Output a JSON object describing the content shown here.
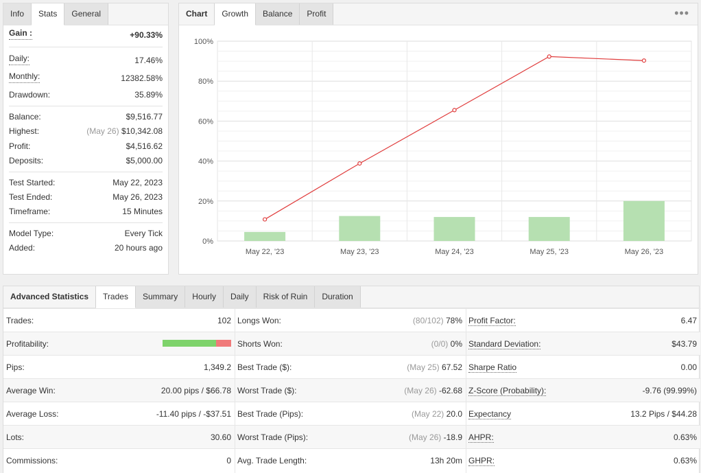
{
  "info_panel": {
    "tabs": [
      "Info",
      "Stats",
      "General"
    ],
    "active_tab": "Stats",
    "rows": {
      "gain": {
        "label": "Gain :",
        "value": "+90.33%"
      },
      "daily": {
        "label": "Daily:",
        "value": "17.46%"
      },
      "monthly": {
        "label": "Monthly:",
        "value": "12382.58%"
      },
      "drawdown": {
        "label": "Drawdown:",
        "value": "35.89%"
      },
      "balance": {
        "label": "Balance:",
        "value": "$9,516.77"
      },
      "highest": {
        "label": "Highest:",
        "note": "(May 26)",
        "value": "$10,342.08"
      },
      "profit": {
        "label": "Profit:",
        "value": "$4,516.62"
      },
      "deposits": {
        "label": "Deposits:",
        "value": "$5,000.00"
      },
      "test_started": {
        "label": "Test Started:",
        "value": "May 22, 2023"
      },
      "test_ended": {
        "label": "Test Ended:",
        "value": "May 26, 2023"
      },
      "timeframe": {
        "label": "Timeframe:",
        "value": "15 Minutes"
      },
      "model_type": {
        "label": "Model Type:",
        "value": "Every Tick"
      },
      "added": {
        "label": "Added:",
        "value": "20 hours ago"
      }
    },
    "colors": {
      "positive": "#1e9c3a"
    }
  },
  "chart_panel": {
    "tabs": [
      "Chart",
      "Growth",
      "Balance",
      "Profit"
    ],
    "active_tab": "Growth",
    "menu_icon": "ellipsis-icon"
  },
  "chart_data": {
    "type": "bar+line",
    "categories": [
      "May 22, '23",
      "May 23, '23",
      "May 24, '23",
      "May 25, '23",
      "May 26, '23"
    ],
    "series": [
      {
        "kind": "bar",
        "color": "#b6e0b1",
        "values": [
          4.5,
          12.5,
          12,
          12,
          20
        ]
      },
      {
        "kind": "line",
        "color": "#e03c3c",
        "values": [
          10.8,
          38.8,
          65.5,
          92.3,
          90.3
        ]
      }
    ],
    "ylim": [
      0,
      100
    ],
    "yticks": [
      "0%",
      "20%",
      "40%",
      "60%",
      "80%",
      "100%"
    ],
    "grid": true
  },
  "advanced": {
    "tabs": [
      "Advanced Statistics",
      "Trades",
      "Summary",
      "Hourly",
      "Daily",
      "Risk of Ruin",
      "Duration"
    ],
    "active_tab": "Trades",
    "col1": [
      {
        "label": "Trades:",
        "value": "102"
      },
      {
        "label": "Profitability:",
        "value": "",
        "bar": {
          "green": 78,
          "red": 22
        }
      },
      {
        "label": "Pips:",
        "value": "1,349.2"
      },
      {
        "label": "Average Win:",
        "value": "20.00 pips / $66.78"
      },
      {
        "label": "Average Loss:",
        "value": "-11.40 pips / -$37.51"
      },
      {
        "label": "Lots:",
        "value": "30.60"
      },
      {
        "label": "Commissions:",
        "value": "0"
      }
    ],
    "col2": [
      {
        "label": "Longs Won:",
        "note": "(80/102)",
        "value": "78%"
      },
      {
        "label": "Shorts Won:",
        "note": "(0/0)",
        "value": "0%"
      },
      {
        "label": "Best Trade ($):",
        "note": "(May 25)",
        "value": "67.52"
      },
      {
        "label": "Worst Trade ($):",
        "note": "(May 26)",
        "value": "-62.68"
      },
      {
        "label": "Best Trade (Pips):",
        "note": "(May 22)",
        "value": "20.0"
      },
      {
        "label": "Worst Trade (Pips):",
        "note": "(May 26)",
        "value": "-18.9"
      },
      {
        "label": "Avg. Trade Length:",
        "note": "",
        "value": "13h 20m"
      }
    ],
    "col3": [
      {
        "label": "Profit Factor:",
        "value": "6.47"
      },
      {
        "label": "Standard Deviation:",
        "value": "$43.79"
      },
      {
        "label": "Sharpe Ratio",
        "value": "0.00"
      },
      {
        "label": "Z-Score (Probability):",
        "value": "-9.76 (99.99%)"
      },
      {
        "label": "Expectancy",
        "value": "13.2 Pips / $44.28"
      },
      {
        "label": "AHPR:",
        "value": "0.63%"
      },
      {
        "label": "GHPR:",
        "value": "0.63%"
      }
    ],
    "colors": {
      "bar_green": "#7ed36b",
      "bar_red": "#f07a7a"
    }
  }
}
